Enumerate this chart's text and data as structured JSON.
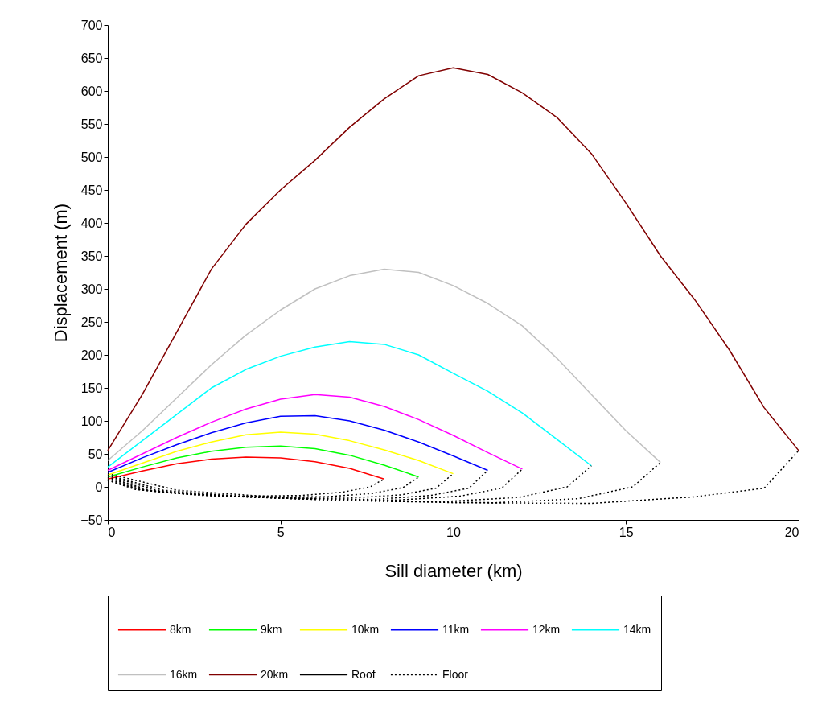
{
  "chart_data": {
    "type": "line",
    "xlabel": "Sill diameter (km)",
    "ylabel": "Displacement (m)",
    "xlim": [
      0,
      20
    ],
    "xticks": [
      0,
      5,
      10,
      15,
      20
    ],
    "ylim": [
      -50,
      700
    ],
    "yticks": [
      -50,
      0,
      50,
      100,
      150,
      200,
      250,
      300,
      350,
      400,
      450,
      500,
      550,
      600,
      650,
      700
    ],
    "grid": false,
    "legend": "bottom",
    "marker": "none",
    "series": [
      {
        "name": "8km",
        "color": "#ff0000",
        "line_style": "solid",
        "x": [
          0,
          1,
          2,
          3,
          4,
          5,
          6,
          7,
          8
        ],
        "values": [
          12,
          24,
          35,
          42,
          45,
          44,
          38,
          28,
          12
        ]
      },
      {
        "name": "9km",
        "color": "#00ff00",
        "line_style": "solid",
        "x": [
          0,
          1,
          2,
          3,
          4,
          5,
          6,
          7,
          8,
          9
        ],
        "values": [
          15,
          30,
          44,
          54,
          60,
          62,
          58,
          48,
          33,
          15
        ]
      },
      {
        "name": "10km",
        "color": "#ffff00",
        "line_style": "solid",
        "x": [
          0,
          1,
          2,
          3,
          4,
          5,
          6,
          7,
          8,
          9,
          10
        ],
        "values": [
          18,
          36,
          54,
          68,
          79,
          83,
          80,
          70,
          56,
          40,
          20
        ]
      },
      {
        "name": "11km",
        "color": "#0000ff",
        "line_style": "solid",
        "x": [
          0,
          1,
          2,
          3,
          4,
          5,
          6,
          7,
          8,
          9,
          10,
          11
        ],
        "values": [
          22,
          44,
          64,
          82,
          97,
          107,
          108,
          100,
          86,
          68,
          47,
          25
        ]
      },
      {
        "name": "12km",
        "color": "#ff00ff",
        "line_style": "solid",
        "x": [
          0,
          1,
          2,
          3,
          4,
          5,
          6,
          7,
          8,
          9,
          10,
          11,
          12
        ],
        "values": [
          25,
          50,
          75,
          98,
          118,
          133,
          140,
          136,
          122,
          102,
          78,
          52,
          27
        ]
      },
      {
        "name": "14km",
        "color": "#00ffff",
        "line_style": "solid",
        "x": [
          0,
          1,
          2,
          3,
          4,
          5,
          6,
          7,
          8,
          9,
          10,
          11,
          12,
          13,
          14
        ],
        "values": [
          30,
          70,
          110,
          150,
          178,
          198,
          212,
          220,
          216,
          200,
          172,
          145,
          112,
          72,
          32
        ]
      },
      {
        "name": "16km",
        "color": "#c0c0c0",
        "line_style": "solid",
        "x": [
          0,
          1,
          2,
          3,
          4,
          5,
          6,
          7,
          8,
          9,
          10,
          11,
          12,
          13,
          14,
          15,
          16
        ],
        "values": [
          40,
          85,
          135,
          185,
          230,
          268,
          300,
          320,
          330,
          325,
          305,
          278,
          244,
          195,
          140,
          85,
          37
        ]
      },
      {
        "name": "20km",
        "color": "#800000",
        "line_style": "solid",
        "x": [
          0,
          1,
          2,
          3,
          4,
          5,
          6,
          7,
          8,
          9,
          10,
          11,
          12,
          13,
          14,
          15,
          16,
          17,
          18,
          19,
          20
        ],
        "values": [
          55,
          140,
          235,
          330,
          398,
          450,
          495,
          545,
          588,
          623,
          635,
          625,
          597,
          560,
          505,
          430,
          350,
          283,
          207,
          120,
          55
        ]
      },
      {
        "name": "Roof",
        "color": "#000000",
        "line_style": "solid"
      },
      {
        "name": "Floor",
        "color": "#000000",
        "line_style": "dotted",
        "x": [
          0,
          0.8,
          2,
          4,
          5.6,
          6.8,
          7.6,
          8
        ],
        "values": [
          10,
          -4,
          -10,
          -14,
          -13,
          -8,
          0,
          12
        ]
      },
      {
        "color": "#000000",
        "line_style": "dotted",
        "x": [
          0,
          0.9,
          2.25,
          4.5,
          6.3,
          7.65,
          8.55,
          9
        ],
        "values": [
          10,
          -4,
          -11,
          -15,
          -15,
          -10,
          -1,
          15
        ]
      },
      {
        "color": "#000000",
        "line_style": "dotted",
        "x": [
          0,
          1,
          2.5,
          5,
          7,
          8.5,
          9.5,
          10
        ],
        "values": [
          12,
          -5,
          -12,
          -17,
          -17,
          -12,
          -2,
          20
        ]
      },
      {
        "color": "#000000",
        "line_style": "dotted",
        "x": [
          0,
          1.1,
          2.75,
          5.5,
          7.7,
          9.35,
          10.45,
          11
        ],
        "values": [
          14,
          -5,
          -13,
          -18,
          -19,
          -13,
          -2,
          25
        ]
      },
      {
        "color": "#000000",
        "line_style": "dotted",
        "x": [
          0,
          1.2,
          3,
          6,
          8.4,
          10.2,
          11.4,
          12
        ],
        "values": [
          15,
          -5,
          -13,
          -19,
          -20,
          -14,
          -2,
          27
        ]
      },
      {
        "color": "#000000",
        "line_style": "dotted",
        "x": [
          0,
          1.4,
          3.5,
          7,
          9.8,
          11.9,
          13.3,
          14
        ],
        "values": [
          17,
          -5,
          -14,
          -21,
          -22,
          -16,
          0,
          32
        ]
      },
      {
        "color": "#000000",
        "line_style": "dotted",
        "x": [
          0,
          1.6,
          4,
          8,
          11.2,
          13.6,
          15.2,
          16
        ],
        "values": [
          18,
          -5,
          -15,
          -22,
          -24,
          -18,
          0,
          37
        ]
      },
      {
        "color": "#000000",
        "line_style": "dotted",
        "x": [
          0,
          2,
          5,
          10,
          14,
          17,
          19,
          20
        ],
        "values": [
          20,
          -5,
          -16,
          -24,
          -25,
          -15,
          -2,
          55
        ]
      }
    ]
  }
}
